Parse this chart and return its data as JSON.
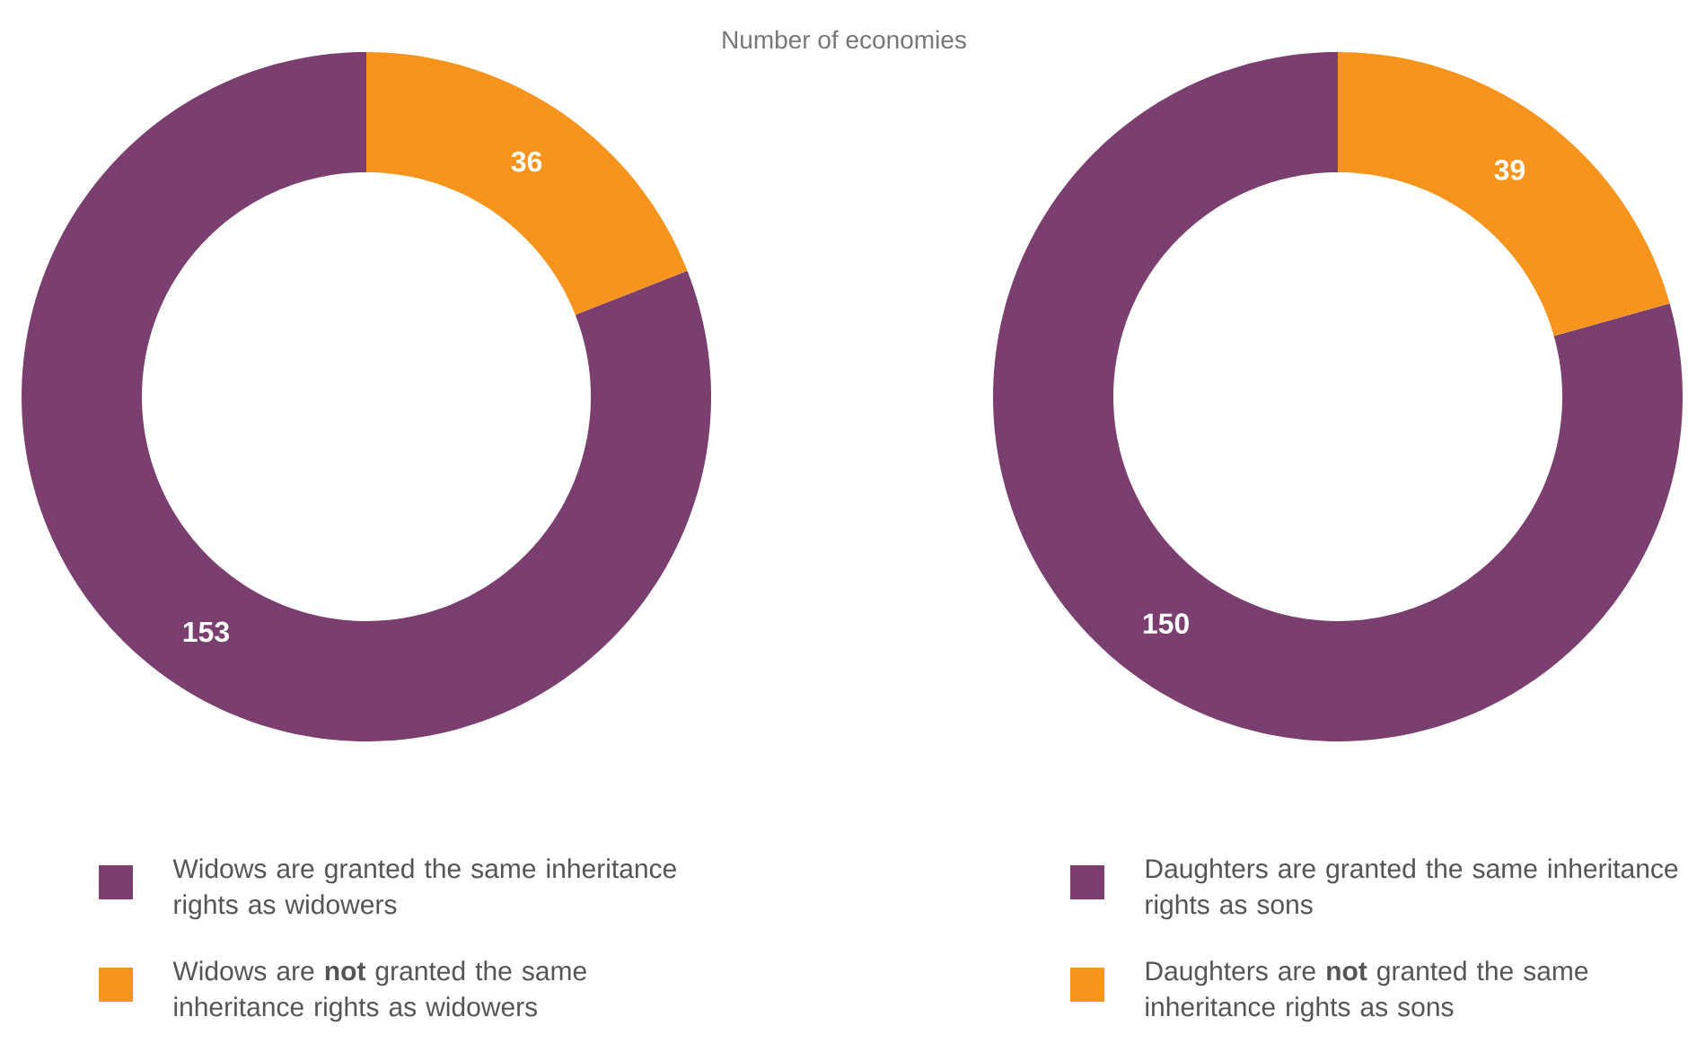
{
  "chart_data": [
    {
      "type": "donut",
      "title": "Number of economies",
      "categories": [
        "Widows are granted the same inheritance rights as widowers",
        "Widows are **not** granted the same inheritance rights as widowers"
      ],
      "values": [
        153,
        36
      ],
      "colors": [
        "#7a3e6f",
        "#f7941d"
      ],
      "data_labels": true,
      "legend": "bottom"
    },
    {
      "type": "donut",
      "categories": [
        "Daughters are granted the same inheritance rights as sons",
        "Daughters are **not** granted the same inheritance rights as sons"
      ],
      "values": [
        150,
        39
      ],
      "colors": [
        "#7a3e6f",
        "#f7941d"
      ],
      "data_labels": true,
      "legend": "bottom"
    }
  ]
}
